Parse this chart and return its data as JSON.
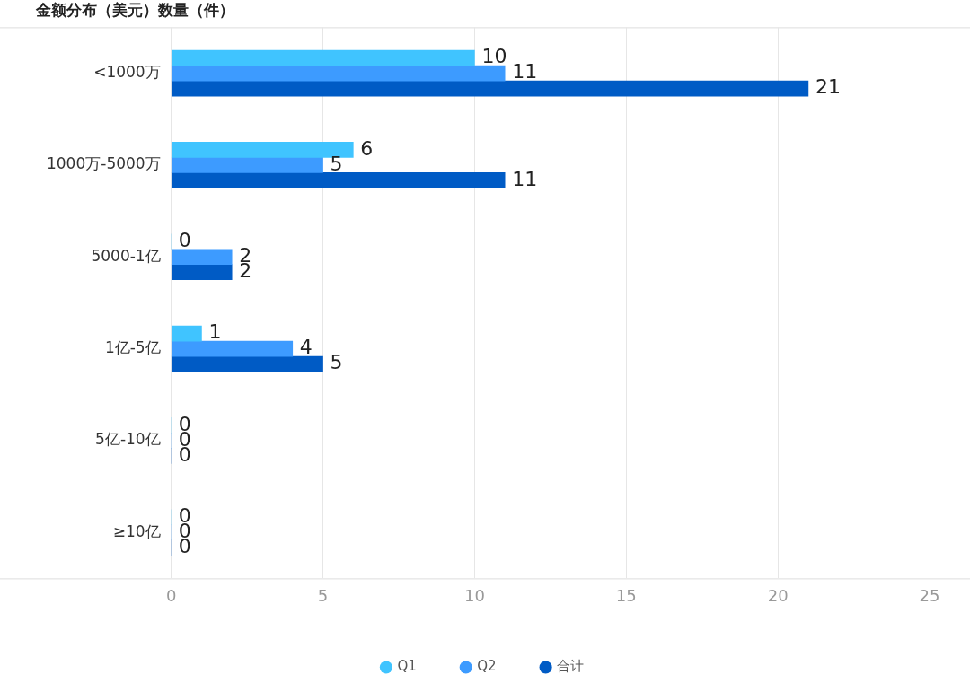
{
  "chart_data": {
    "type": "bar",
    "orientation": "horizontal",
    "title": "金额分布（美元）数量（件）",
    "categories": [
      "<1000万",
      "1000万-5000万",
      "5000-1亿",
      "1亿-5亿",
      "5亿-10亿",
      "≥10亿"
    ],
    "series": [
      {
        "name": "Q1",
        "color": "#40c4ff",
        "values": [
          10,
          6,
          0,
          1,
          0,
          0
        ]
      },
      {
        "name": "Q2",
        "color": "#3d9bff",
        "values": [
          11,
          5,
          2,
          4,
          0,
          0
        ]
      },
      {
        "name": "合计",
        "color": "#005bc5",
        "values": [
          21,
          11,
          2,
          5,
          0,
          0
        ]
      }
    ],
    "xlim": [
      0,
      25
    ],
    "xticks": [
      0,
      5,
      10,
      15,
      20,
      25
    ],
    "grid": "x",
    "legend": "bottom",
    "data_labels": true
  }
}
